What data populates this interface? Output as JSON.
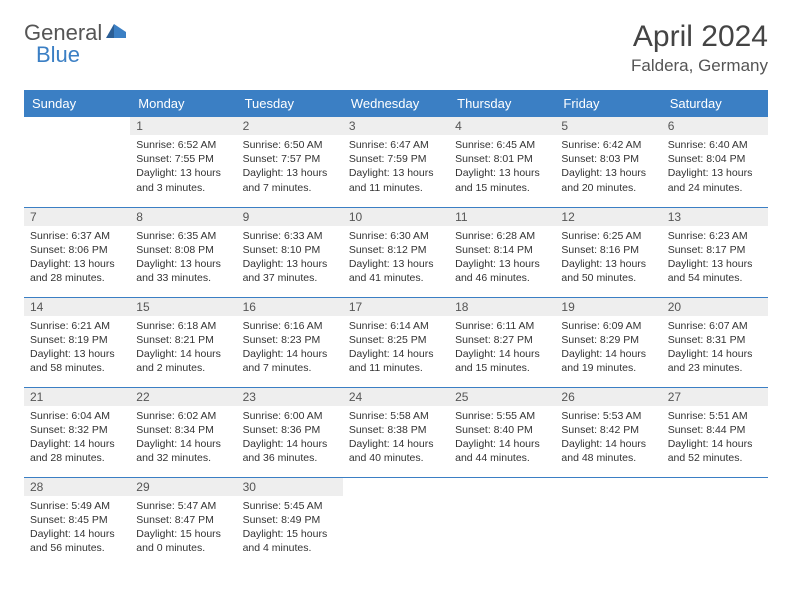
{
  "brand": {
    "part1": "General",
    "part2": "Blue"
  },
  "title": "April 2024",
  "location": "Faldera, Germany",
  "colors": {
    "header_bg": "#3b7fc4",
    "header_text": "#ffffff",
    "daynum_bg": "#eeeeee",
    "border": "#3b7fc4",
    "brand_gray": "#555555",
    "brand_blue": "#3b7fc4"
  },
  "weekdays": [
    "Sunday",
    "Monday",
    "Tuesday",
    "Wednesday",
    "Thursday",
    "Friday",
    "Saturday"
  ],
  "days": [
    {
      "n": 1,
      "sr": "6:52 AM",
      "ss": "7:55 PM",
      "dl": "13 hours and 3 minutes."
    },
    {
      "n": 2,
      "sr": "6:50 AM",
      "ss": "7:57 PM",
      "dl": "13 hours and 7 minutes."
    },
    {
      "n": 3,
      "sr": "6:47 AM",
      "ss": "7:59 PM",
      "dl": "13 hours and 11 minutes."
    },
    {
      "n": 4,
      "sr": "6:45 AM",
      "ss": "8:01 PM",
      "dl": "13 hours and 15 minutes."
    },
    {
      "n": 5,
      "sr": "6:42 AM",
      "ss": "8:03 PM",
      "dl": "13 hours and 20 minutes."
    },
    {
      "n": 6,
      "sr": "6:40 AM",
      "ss": "8:04 PM",
      "dl": "13 hours and 24 minutes."
    },
    {
      "n": 7,
      "sr": "6:37 AM",
      "ss": "8:06 PM",
      "dl": "13 hours and 28 minutes."
    },
    {
      "n": 8,
      "sr": "6:35 AM",
      "ss": "8:08 PM",
      "dl": "13 hours and 33 minutes."
    },
    {
      "n": 9,
      "sr": "6:33 AM",
      "ss": "8:10 PM",
      "dl": "13 hours and 37 minutes."
    },
    {
      "n": 10,
      "sr": "6:30 AM",
      "ss": "8:12 PM",
      "dl": "13 hours and 41 minutes."
    },
    {
      "n": 11,
      "sr": "6:28 AM",
      "ss": "8:14 PM",
      "dl": "13 hours and 46 minutes."
    },
    {
      "n": 12,
      "sr": "6:25 AM",
      "ss": "8:16 PM",
      "dl": "13 hours and 50 minutes."
    },
    {
      "n": 13,
      "sr": "6:23 AM",
      "ss": "8:17 PM",
      "dl": "13 hours and 54 minutes."
    },
    {
      "n": 14,
      "sr": "6:21 AM",
      "ss": "8:19 PM",
      "dl": "13 hours and 58 minutes."
    },
    {
      "n": 15,
      "sr": "6:18 AM",
      "ss": "8:21 PM",
      "dl": "14 hours and 2 minutes."
    },
    {
      "n": 16,
      "sr": "6:16 AM",
      "ss": "8:23 PM",
      "dl": "14 hours and 7 minutes."
    },
    {
      "n": 17,
      "sr": "6:14 AM",
      "ss": "8:25 PM",
      "dl": "14 hours and 11 minutes."
    },
    {
      "n": 18,
      "sr": "6:11 AM",
      "ss": "8:27 PM",
      "dl": "14 hours and 15 minutes."
    },
    {
      "n": 19,
      "sr": "6:09 AM",
      "ss": "8:29 PM",
      "dl": "14 hours and 19 minutes."
    },
    {
      "n": 20,
      "sr": "6:07 AM",
      "ss": "8:31 PM",
      "dl": "14 hours and 23 minutes."
    },
    {
      "n": 21,
      "sr": "6:04 AM",
      "ss": "8:32 PM",
      "dl": "14 hours and 28 minutes."
    },
    {
      "n": 22,
      "sr": "6:02 AM",
      "ss": "8:34 PM",
      "dl": "14 hours and 32 minutes."
    },
    {
      "n": 23,
      "sr": "6:00 AM",
      "ss": "8:36 PM",
      "dl": "14 hours and 36 minutes."
    },
    {
      "n": 24,
      "sr": "5:58 AM",
      "ss": "8:38 PM",
      "dl": "14 hours and 40 minutes."
    },
    {
      "n": 25,
      "sr": "5:55 AM",
      "ss": "8:40 PM",
      "dl": "14 hours and 44 minutes."
    },
    {
      "n": 26,
      "sr": "5:53 AM",
      "ss": "8:42 PM",
      "dl": "14 hours and 48 minutes."
    },
    {
      "n": 27,
      "sr": "5:51 AM",
      "ss": "8:44 PM",
      "dl": "14 hours and 52 minutes."
    },
    {
      "n": 28,
      "sr": "5:49 AM",
      "ss": "8:45 PM",
      "dl": "14 hours and 56 minutes."
    },
    {
      "n": 29,
      "sr": "5:47 AM",
      "ss": "8:47 PM",
      "dl": "15 hours and 0 minutes."
    },
    {
      "n": 30,
      "sr": "5:45 AM",
      "ss": "8:49 PM",
      "dl": "15 hours and 4 minutes."
    }
  ],
  "layout": {
    "start_weekday": 1,
    "rows": 5,
    "cols": 7
  },
  "labels": {
    "sunrise": "Sunrise:",
    "sunset": "Sunset:",
    "daylight": "Daylight:"
  }
}
